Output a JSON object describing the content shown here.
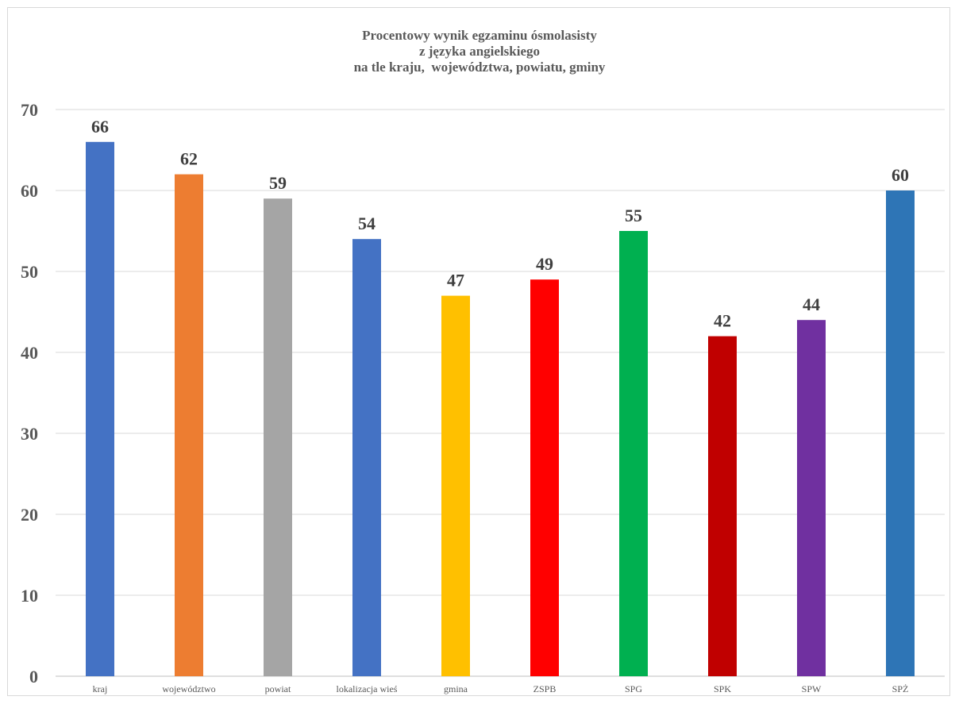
{
  "chart_data": {
    "type": "bar",
    "title_lines": [
      "Procentowy wynik egzaminu ósmolasisty",
      "z języka angielskiego",
      "na tle kraju,  województwa, powiatu, gminy"
    ],
    "categories": [
      "kraj",
      "województwo",
      "powiat",
      "lokalizacja wieś",
      "gmina",
      "ZSPB",
      "SPG",
      "SPK",
      "SPW",
      "SPŻ"
    ],
    "values": [
      66,
      62,
      59,
      54,
      47,
      49,
      55,
      42,
      44,
      60
    ],
    "colors": [
      "#4472C4",
      "#ED7D31",
      "#A5A5A5",
      "#4472C4",
      "#FFC000",
      "#FF0000",
      "#00B050",
      "#C00000",
      "#7030A0",
      "#2E75B6"
    ],
    "yticks": [
      0,
      10,
      20,
      30,
      40,
      50,
      60,
      70
    ],
    "ylim": [
      0,
      70
    ],
    "grid": true,
    "legend": "none",
    "data_labels": true,
    "xlabel": "",
    "ylabel": ""
  }
}
